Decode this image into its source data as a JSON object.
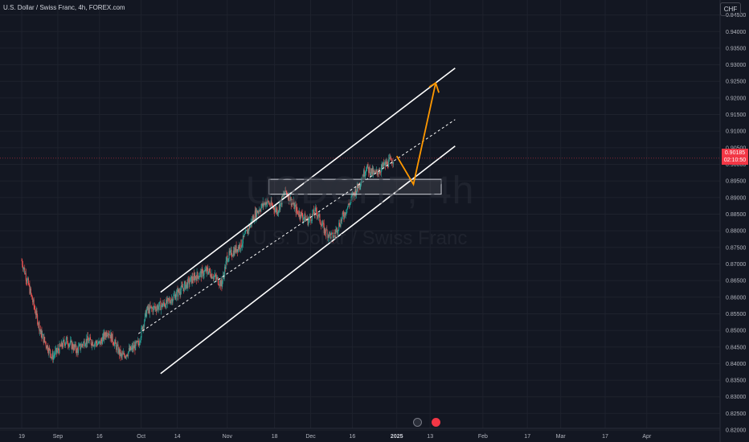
{
  "header": {
    "title": "U.S. Dollar / Swiss Franc, 4h, FOREX.com"
  },
  "watermark": {
    "symbol": "USDCHF, 4h",
    "description": "U.S. Dollar / Swiss Franc"
  },
  "price_axis": {
    "currency": "CHF",
    "current_price": "0.90185",
    "countdown": "02:10:50"
  },
  "colors": {
    "background": "#131722",
    "up": "#26a69a",
    "down": "#ef5350",
    "channel": "#ffffff",
    "projection": "#ff9800",
    "price_line": "#f23645"
  },
  "icons": [
    "lightning-icon",
    "flag-icon"
  ],
  "chart_data": {
    "type": "candlestick",
    "symbol": "USDCHF",
    "timeframe": "4h",
    "source": "FOREX.com",
    "ylim": [
      0.8205,
      0.9495
    ],
    "y_ticks": [
      "0.94500",
      "0.94000",
      "0.93500",
      "0.93000",
      "0.92500",
      "0.92000",
      "0.91500",
      "0.91000",
      "0.90500",
      "0.90000",
      "0.89500",
      "0.89000",
      "0.88500",
      "0.88000",
      "0.87500",
      "0.87000",
      "0.86500",
      "0.86000",
      "0.85500",
      "0.85000",
      "0.84500",
      "0.84000",
      "0.83500",
      "0.83000",
      "0.82500",
      "0.82000"
    ],
    "x_ticks": [
      "19",
      "Sep",
      "16",
      "Oct",
      "14",
      "Nov",
      "18",
      "Dec",
      "16",
      "2025",
      "13",
      "Feb",
      "17",
      "Mar",
      "17",
      "Apr"
    ],
    "x_bold": [
      "2025"
    ],
    "price_path": [
      {
        "date": "2024-08-19",
        "close": 0.871
      },
      {
        "date": "2024-08-21",
        "close": 0.865
      },
      {
        "date": "2024-08-26",
        "close": 0.849
      },
      {
        "date": "2024-08-30",
        "close": 0.842
      },
      {
        "date": "2024-09-04",
        "close": 0.847
      },
      {
        "date": "2024-09-08",
        "close": 0.844
      },
      {
        "date": "2024-09-11",
        "close": 0.847
      },
      {
        "date": "2024-09-16",
        "close": 0.846
      },
      {
        "date": "2024-09-19",
        "close": 0.85
      },
      {
        "date": "2024-09-24",
        "close": 0.842
      },
      {
        "date": "2024-09-30",
        "close": 0.846
      },
      {
        "date": "2024-10-03",
        "close": 0.856
      },
      {
        "date": "2024-10-10",
        "close": 0.858
      },
      {
        "date": "2024-10-15",
        "close": 0.862
      },
      {
        "date": "2024-10-20",
        "close": 0.866
      },
      {
        "date": "2024-10-25",
        "close": 0.868
      },
      {
        "date": "2024-10-30",
        "close": 0.864
      },
      {
        "date": "2024-11-01",
        "close": 0.872
      },
      {
        "date": "2024-11-06",
        "close": 0.876
      },
      {
        "date": "2024-11-11",
        "close": 0.885
      },
      {
        "date": "2024-11-15",
        "close": 0.889
      },
      {
        "date": "2024-11-19",
        "close": 0.886
      },
      {
        "date": "2024-11-22",
        "close": 0.892
      },
      {
        "date": "2024-11-26",
        "close": 0.886
      },
      {
        "date": "2024-11-30",
        "close": 0.883
      },
      {
        "date": "2024-12-03",
        "close": 0.886
      },
      {
        "date": "2024-12-06",
        "close": 0.88
      },
      {
        "date": "2024-12-09",
        "close": 0.878
      },
      {
        "date": "2024-12-13",
        "close": 0.885
      },
      {
        "date": "2024-12-16",
        "close": 0.89
      },
      {
        "date": "2024-12-19",
        "close": 0.895
      },
      {
        "date": "2024-12-21",
        "close": 0.899
      },
      {
        "date": "2024-12-24",
        "close": 0.897
      },
      {
        "date": "2024-12-28",
        "close": 0.9
      },
      {
        "date": "2024-12-31",
        "close": 0.9018
      }
    ],
    "channel": {
      "upper": [
        {
          "date": "2024-10-08",
          "price": 0.8615
        },
        {
          "date": "2025-01-22",
          "price": 0.929
        }
      ],
      "middle": [
        {
          "date": "2024-09-30",
          "price": 0.849
        },
        {
          "date": "2025-01-22",
          "price": 0.9135
        }
      ],
      "lower": [
        {
          "date": "2024-10-08",
          "price": 0.837
        },
        {
          "date": "2025-01-22",
          "price": 0.9055
        }
      ]
    },
    "zone": {
      "from": "2024-11-16",
      "to": "2025-01-17",
      "high": 0.8955,
      "low": 0.891
    },
    "projection": [
      {
        "date": "2025-01-01",
        "price": 0.9025
      },
      {
        "date": "2025-01-07",
        "price": 0.894
      },
      {
        "date": "2025-01-15",
        "price": 0.9245
      },
      {
        "date": "2025-01-16",
        "price": 0.921
      }
    ],
    "current_price": 0.90185
  }
}
